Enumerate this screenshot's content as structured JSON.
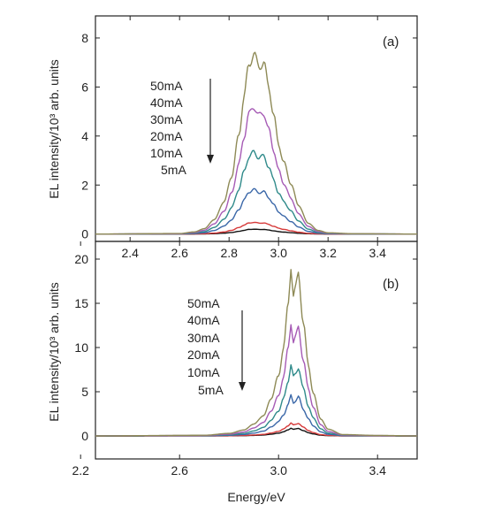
{
  "chart_data": [
    {
      "type": "line",
      "panel_label": "(a)",
      "ylabel": "EL intensity/10³ arb. units",
      "xlim": [
        2.26,
        3.56
      ],
      "ylim": [
        -0.3,
        8.9
      ],
      "xticks": [
        "2.4",
        "2.6",
        "2.8",
        "3.0",
        "3.2",
        "3.4"
      ],
      "yticks": [
        "0",
        "2",
        "4",
        "6",
        "8"
      ],
      "legend_order_top_to_bottom": [
        "50mA",
        "40mA",
        "30mA",
        "20mA",
        "10mA",
        "5mA"
      ],
      "legend_arrow": "down",
      "peak_center_x": 2.9,
      "series": [
        {
          "name": "5mA",
          "color": "#111111",
          "peak": 0.2
        },
        {
          "name": "10mA",
          "color": "#d63a3a",
          "peak": 0.48
        },
        {
          "name": "20mA",
          "color": "#3a67a8",
          "peak": 1.82
        },
        {
          "name": "30mA",
          "color": "#2f8a8a",
          "peak": 3.35
        },
        {
          "name": "40mA",
          "color": "#a65bb5",
          "peak": 5.2
        },
        {
          "name": "50mA",
          "color": "#8e8a56",
          "peak": 7.35
        }
      ],
      "profile_x": [
        2.26,
        2.6,
        2.66,
        2.7,
        2.74,
        2.78,
        2.81,
        2.84,
        2.86,
        2.88,
        2.9,
        2.92,
        2.94,
        2.96,
        2.98,
        3.0,
        3.02,
        3.05,
        3.08,
        3.12,
        3.16,
        3.2,
        3.3,
        3.56
      ],
      "profile_shape": [
        0,
        0.003,
        0.012,
        0.03,
        0.08,
        0.18,
        0.32,
        0.55,
        0.76,
        0.94,
        1.0,
        0.93,
        0.95,
        0.82,
        0.66,
        0.5,
        0.4,
        0.28,
        0.16,
        0.06,
        0.02,
        0.007,
        0.002,
        0
      ]
    },
    {
      "type": "line",
      "panel_label": "(b)",
      "xlabel": "Energy/eV",
      "ylabel": "EL intensity/10³ arb. units",
      "xlim": [
        2.26,
        3.56
      ],
      "ylim": [
        -2.6,
        22
      ],
      "xticks": [
        "2.2",
        "2.6",
        "3.0",
        "3.4"
      ],
      "yticks": [
        "0",
        "5",
        "10",
        "15",
        "20"
      ],
      "legend_order_top_to_bottom": [
        "50mA",
        "40mA",
        "30mA",
        "20mA",
        "10mA",
        "5mA"
      ],
      "legend_arrow": "down",
      "peak_center_x": 3.05,
      "series": [
        {
          "name": "5mA",
          "color": "#111111",
          "peak": 0.9
        },
        {
          "name": "10mA",
          "color": "#d63a3a",
          "peak": 1.5
        },
        {
          "name": "20mA",
          "color": "#3a67a8",
          "peak": 4.6
        },
        {
          "name": "30mA",
          "color": "#2f8a8a",
          "peak": 8.1
        },
        {
          "name": "40mA",
          "color": "#a65bb5",
          "peak": 12.9
        },
        {
          "name": "50mA",
          "color": "#8e8a56",
          "peak": 19.3
        }
      ],
      "profile_x": [
        2.26,
        2.7,
        2.8,
        2.86,
        2.9,
        2.94,
        2.97,
        3.0,
        3.02,
        3.04,
        3.05,
        3.06,
        3.07,
        3.08,
        3.1,
        3.12,
        3.14,
        3.17,
        3.2,
        3.26,
        3.4,
        3.56
      ],
      "profile_shape": [
        0,
        0.004,
        0.015,
        0.035,
        0.07,
        0.12,
        0.22,
        0.35,
        0.52,
        0.78,
        1.0,
        0.82,
        0.87,
        0.96,
        0.66,
        0.42,
        0.25,
        0.1,
        0.04,
        0.008,
        0.003,
        0
      ]
    }
  ]
}
